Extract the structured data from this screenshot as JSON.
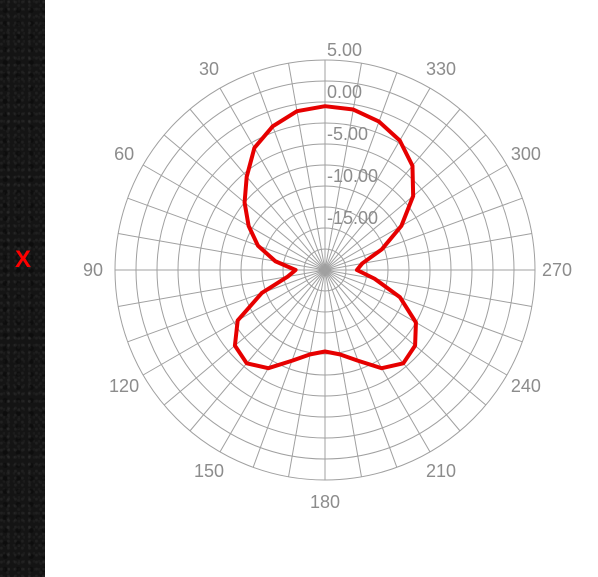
{
  "side_marker": {
    "text": "X",
    "color": "#ff0000"
  },
  "chart_data": {
    "type": "polar-line",
    "angle_unit": "degrees",
    "angle_direction": "counterclockwise",
    "zero_angle_at": "top",
    "angle_tick_step": 30,
    "radial_range": [
      -20,
      5
    ],
    "radial_tick_step": 5,
    "grid": true,
    "grid_radial_lines_every_deg": 10,
    "angle_tick_labels": [
      {
        "angle": 30,
        "text": "30"
      },
      {
        "angle": 60,
        "text": "60"
      },
      {
        "angle": 90,
        "text": "90"
      },
      {
        "angle": 120,
        "text": "120"
      },
      {
        "angle": 150,
        "text": "150"
      },
      {
        "angle": 180,
        "text": "180"
      },
      {
        "angle": 210,
        "text": "210"
      },
      {
        "angle": 240,
        "text": "240"
      },
      {
        "angle": 270,
        "text": "270"
      },
      {
        "angle": 300,
        "text": "300"
      },
      {
        "angle": 330,
        "text": "330"
      }
    ],
    "radial_tick_labels": [
      {
        "value": 5,
        "text": "5.00"
      },
      {
        "value": 0,
        "text": "0.00"
      },
      {
        "value": -5,
        "text": "-5.00"
      },
      {
        "value": -10,
        "text": "-10.00"
      },
      {
        "value": -15,
        "text": "-15.00"
      }
    ],
    "series": [
      {
        "color": "#e60000",
        "points": [
          [
            0,
            -0.5
          ],
          [
            10,
            -0.8
          ],
          [
            20,
            -1.8
          ],
          [
            30,
            -3.2
          ],
          [
            40,
            -5.5
          ],
          [
            50,
            -7.5
          ],
          [
            60,
            -9.5
          ],
          [
            70,
            -11.5
          ],
          [
            80,
            -14.0
          ],
          [
            90,
            -16.5
          ],
          [
            100,
            -15.5
          ],
          [
            110,
            -12.0
          ],
          [
            120,
            -8.0
          ],
          [
            130,
            -6.0
          ],
          [
            140,
            -5.5
          ],
          [
            150,
            -6.5
          ],
          [
            160,
            -8.5
          ],
          [
            170,
            -9.8
          ],
          [
            180,
            -10.3
          ],
          [
            190,
            -9.8
          ],
          [
            200,
            -8.5
          ],
          [
            210,
            -6.5
          ],
          [
            220,
            -5.5
          ],
          [
            230,
            -6.0
          ],
          [
            240,
            -7.5
          ],
          [
            250,
            -10.5
          ],
          [
            260,
            -14.0
          ],
          [
            270,
            -16.2
          ],
          [
            280,
            -15.5
          ],
          [
            290,
            -12.8
          ],
          [
            300,
            -9.5
          ],
          [
            310,
            -6.3
          ],
          [
            320,
            -3.8
          ],
          [
            330,
            -2.2
          ],
          [
            340,
            -1.2
          ],
          [
            350,
            -0.6
          ]
        ]
      }
    ]
  }
}
